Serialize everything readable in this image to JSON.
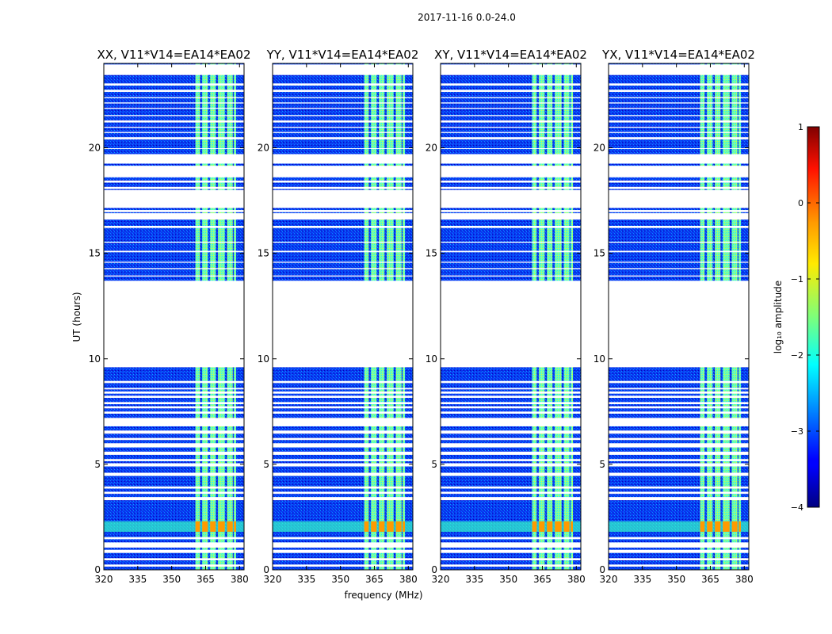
{
  "figure_title": "2017-11-16 0.0-24.0",
  "chart_data": {
    "type": "heatmap",
    "title": "2017-11-16 0.0-24.0",
    "xlabel": "frequency (MHz)",
    "ylabel": "UT (hours)",
    "xlim": [
      320,
      382
    ],
    "ylim": [
      0,
      24
    ],
    "xticks": [
      320,
      335,
      350,
      365,
      380
    ],
    "yticks": [
      0,
      5,
      10,
      15,
      20
    ],
    "panels": [
      {
        "title": "XX, V11*V14=EA14*EA02",
        "polarization": "XX"
      },
      {
        "title": "YY, V11*V14=EA14*EA02",
        "polarization": "YY"
      },
      {
        "title": "XY, V11*V14=EA14*EA02",
        "polarization": "XY"
      },
      {
        "title": "YX, V11*V14=EA14*EA02",
        "polarization": "YX"
      }
    ],
    "rfi_channels_mhz": [
      [
        360.5,
        362.5
      ],
      [
        363.5,
        366.0
      ],
      [
        367.0,
        369.5
      ],
      [
        370.5,
        373.5
      ],
      [
        374.5,
        377.0
      ],
      [
        377.5,
        378.5
      ]
    ],
    "background_log_amplitude": -3.4,
    "rfi_log_amplitude": -1.8,
    "strong_rfi_hours": [
      1.8,
      2.3
    ],
    "strong_rfi_log_amplitude": 0.1,
    "data_gaps_hours": [
      [
        0.15,
        0.25
      ],
      [
        0.45,
        0.55
      ],
      [
        0.8,
        0.95
      ],
      [
        1.05,
        1.3
      ],
      [
        1.45,
        1.55
      ],
      [
        3.3,
        3.45
      ],
      [
        3.6,
        3.7
      ],
      [
        3.85,
        3.95
      ],
      [
        4.45,
        4.6
      ],
      [
        4.9,
        5.05
      ],
      [
        5.15,
        5.25
      ],
      [
        5.45,
        5.6
      ],
      [
        5.8,
        6.0
      ],
      [
        6.15,
        6.25
      ],
      [
        6.45,
        6.6
      ],
      [
        6.8,
        7.2
      ],
      [
        7.4,
        7.5
      ],
      [
        7.65,
        7.75
      ],
      [
        7.85,
        7.95
      ],
      [
        8.15,
        8.25
      ],
      [
        8.35,
        8.45
      ],
      [
        8.55,
        8.62
      ],
      [
        8.85,
        8.95
      ],
      [
        9.6,
        13.7
      ],
      [
        13.9,
        13.95
      ],
      [
        14.25,
        14.3
      ],
      [
        14.55,
        14.6
      ],
      [
        15.05,
        15.12
      ],
      [
        15.5,
        15.55
      ],
      [
        16.2,
        16.3
      ],
      [
        16.6,
        16.9
      ],
      [
        16.95,
        17.05
      ],
      [
        17.15,
        18.0
      ],
      [
        18.05,
        18.15
      ],
      [
        18.35,
        18.45
      ],
      [
        18.6,
        19.15
      ],
      [
        19.25,
        19.7
      ],
      [
        19.95,
        19.98
      ],
      [
        20.4,
        20.5
      ],
      [
        20.7,
        20.75
      ],
      [
        20.95,
        21.0
      ],
      [
        21.2,
        21.3
      ],
      [
        21.5,
        21.55
      ],
      [
        21.85,
        21.9
      ],
      [
        22.1,
        22.15
      ],
      [
        22.35,
        22.4
      ],
      [
        22.65,
        22.75
      ],
      [
        22.95,
        23.05
      ],
      [
        23.45,
        23.95
      ]
    ],
    "colorbar": {
      "label": "log₁₀ amplitude",
      "range": [
        -4,
        1
      ],
      "ticks": [
        1,
        0,
        -1,
        -2,
        -3,
        -4
      ],
      "tick_labels": [
        "1",
        "0",
        "−1",
        "−2",
        "−3",
        "−4"
      ],
      "colormap": "jet"
    }
  }
}
